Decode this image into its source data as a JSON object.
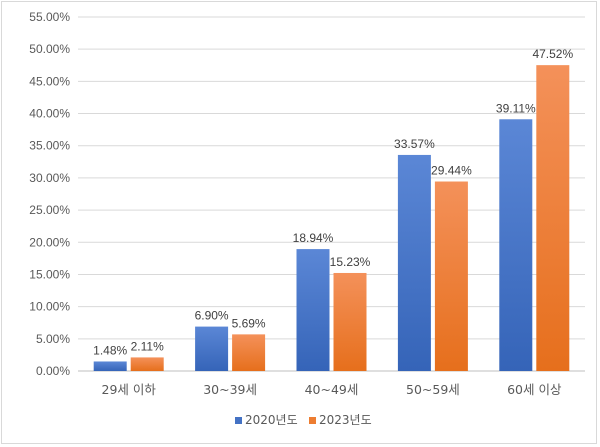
{
  "chart_data": {
    "type": "bar",
    "title": "",
    "xlabel": "",
    "ylabel": "",
    "ylim": [
      0,
      55
    ],
    "ytick_step": 5,
    "ytick_labels": [
      "0.00%",
      "5.00%",
      "10.00%",
      "15.00%",
      "20.00%",
      "25.00%",
      "30.00%",
      "35.00%",
      "40.00%",
      "45.00%",
      "50.00%",
      "55.00%"
    ],
    "categories": [
      "29세 이하",
      "30~39세",
      "40~49세",
      "50~59세",
      "60세 이상"
    ],
    "series": [
      {
        "name": "2020년도",
        "color": "#4472c4",
        "values": [
          1.48,
          6.9,
          18.94,
          33.57,
          39.11
        ],
        "labels": [
          "1.48%",
          "6.90%",
          "18.94%",
          "33.57%",
          "39.11%"
        ]
      },
      {
        "name": "2023년도",
        "color": "#ed7d31",
        "values": [
          2.11,
          5.69,
          15.23,
          29.44,
          47.52
        ],
        "labels": [
          "2.11%",
          "5.69%",
          "15.23%",
          "29.44%",
          "47.52%"
        ]
      }
    ],
    "grid": true,
    "legend_position": "bottom"
  }
}
